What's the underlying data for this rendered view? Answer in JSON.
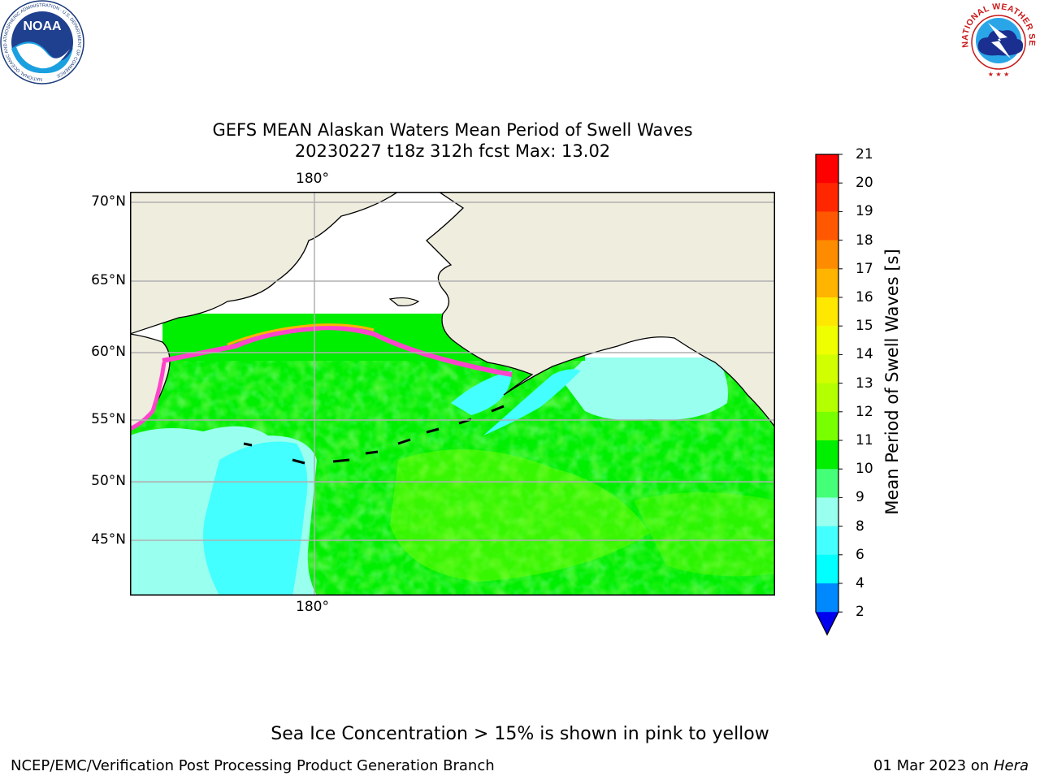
{
  "header": {
    "noaa_logo": "NOAA",
    "noaa_ring_text": "NATIONAL OCEANIC AND ATMOSPHERIC ADMINISTRATION · U.S. DEPARTMENT OF COMMERCE",
    "nws_ring_text": "NATIONAL WEATHER SERVICE"
  },
  "map": {
    "title_line1": "GEFS MEAN Alaskan Waters Mean Period of Swell Waves",
    "title_line2": "20230227 t18z 312h fcst   Max: 13.02",
    "lon_label_top": "180°",
    "lon_label_bottom": "180°",
    "lat_labels": [
      "70°N",
      "65°N",
      "60°N",
      "55°N",
      "50°N",
      "45°N"
    ],
    "land_color": "#efedde",
    "ice_free_color": "#ffffff"
  },
  "colorbar": {
    "label": "Mean Period of Swell Waves [s]",
    "ticks": [
      "21",
      "20",
      "19",
      "18",
      "17",
      "16",
      "15",
      "14",
      "13",
      "12",
      "11",
      "10",
      "9",
      "8",
      "6",
      "4",
      "2"
    ],
    "colors": [
      "#ff0000",
      "#ff2600",
      "#ff5800",
      "#ff8c00",
      "#ffb400",
      "#ffe800",
      "#f0ff00",
      "#d2ff00",
      "#b4ff00",
      "#78ff00",
      "#00ee00",
      "#44ff77",
      "#99ffee",
      "#44ffff",
      "#00ffff",
      "#0088ff",
      "#0000ee"
    ]
  },
  "footer": {
    "note": "Sea Ice Concentration > 15% is shown in pink to yellow",
    "credit": "NCEP/EMC/Verification Post Processing Product Generation Branch",
    "date": "01 Mar 2023 on ",
    "host": "Hera"
  }
}
